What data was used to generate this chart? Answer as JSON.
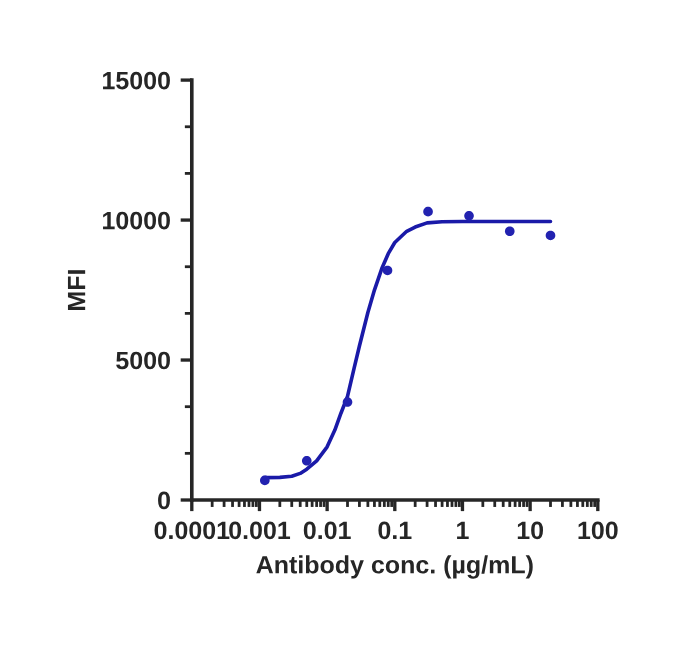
{
  "chart_data": {
    "type": "scatter",
    "xlabel": "Antibody conc. (µg/mL)",
    "ylabel": "MFI",
    "log": "x",
    "xlim": [
      0.0001,
      100
    ],
    "xticks": [
      0.0001,
      0.001,
      0.01,
      0.1,
      1,
      10,
      100
    ],
    "ylim": [
      0,
      15000
    ],
    "yticks": [
      0,
      5000,
      10000,
      15000
    ],
    "grid": false,
    "series": [
      {
        "color": "#2222b0",
        "marker": "circle",
        "x": [
          0.0012,
          0.005,
          0.02,
          0.078,
          0.31,
          1.25,
          5,
          20
        ],
        "values": [
          700,
          1400,
          3500,
          8200,
          10300,
          10150,
          9600,
          9450
        ]
      },
      {
        "type": "line",
        "color": "#1a1aa8",
        "line_style": "solid",
        "x": [
          0.0012,
          0.002,
          0.003,
          0.004,
          0.005,
          0.007,
          0.01,
          0.013,
          0.016,
          0.02,
          0.025,
          0.03,
          0.04,
          0.05,
          0.065,
          0.08,
          0.1,
          0.15,
          0.2,
          0.3,
          0.5,
          1,
          3,
          20
        ],
        "values": [
          800,
          810,
          850,
          950,
          1100,
          1400,
          1900,
          2500,
          3100,
          3700,
          4700,
          5500,
          6700,
          7500,
          8300,
          8800,
          9200,
          9600,
          9750,
          9900,
          9940,
          9950,
          9950,
          9950
        ]
      }
    ]
  }
}
